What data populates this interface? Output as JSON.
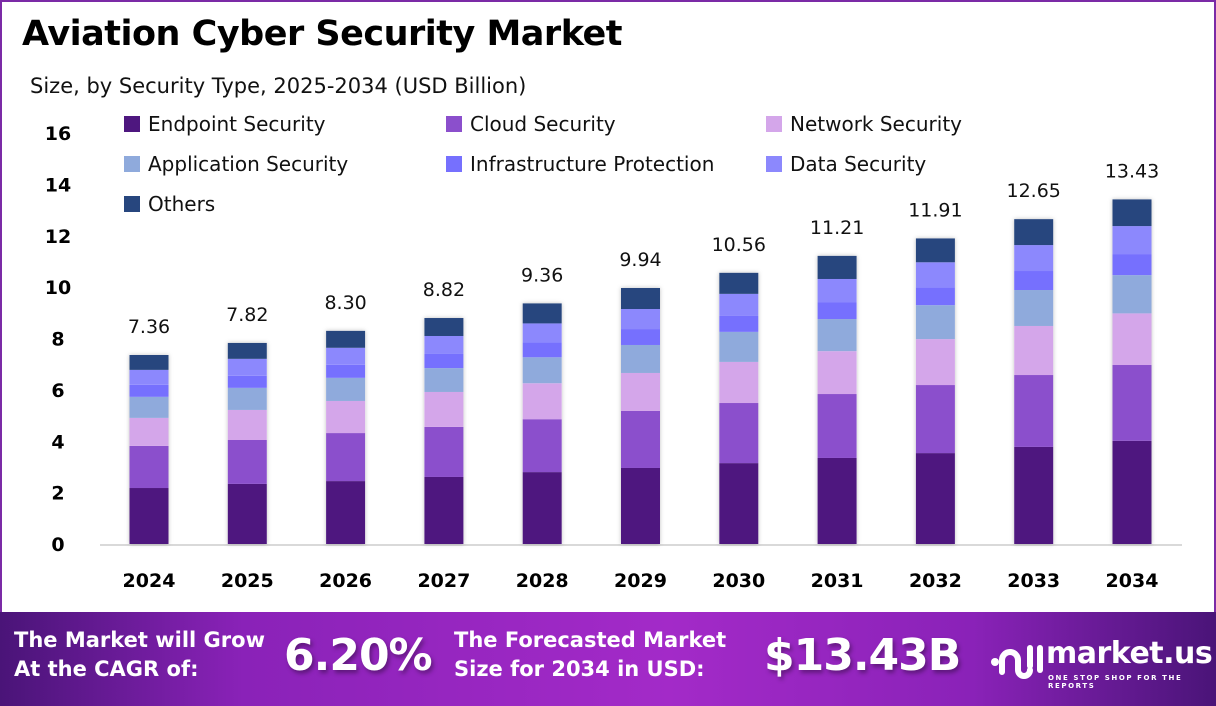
{
  "header": {
    "title": "Aviation Cyber Security Market",
    "subtitle": "Size, by Security Type, 2025-2034 (USD Billion)"
  },
  "chart_data": {
    "type": "bar",
    "stacked": true,
    "title": "Aviation Cyber Security Market",
    "subtitle": "Size, by Security Type, 2025-2034 (USD Billion)",
    "xlabel": "",
    "ylabel": "",
    "ylim": [
      0,
      16
    ],
    "yticks": [
      0,
      2,
      4,
      6,
      8,
      10,
      12,
      14,
      16
    ],
    "grid": false,
    "legend_position": "top-left",
    "categories": [
      "2024",
      "2025",
      "2026",
      "2027",
      "2028",
      "2029",
      "2030",
      "2031",
      "2032",
      "2033",
      "2034"
    ],
    "totals": [
      "7.36",
      "7.82",
      "8.30",
      "8.82",
      "9.36",
      "9.94",
      "10.56",
      "11.21",
      "11.91",
      "12.65",
      "13.43"
    ],
    "series": [
      {
        "name": "Endpoint Security",
        "color": "#4e177f",
        "values": [
          2.18,
          2.34,
          2.45,
          2.61,
          2.8,
          2.96,
          3.15,
          3.35,
          3.54,
          3.78,
          4.02
        ]
      },
      {
        "name": "Cloud Security",
        "color": "#8b4fcc",
        "values": [
          1.64,
          1.71,
          1.87,
          1.95,
          2.06,
          2.22,
          2.34,
          2.49,
          2.65,
          2.8,
          2.95
        ]
      },
      {
        "name": "Network Security",
        "color": "#d4a6ea",
        "values": [
          1.09,
          1.17,
          1.25,
          1.36,
          1.4,
          1.48,
          1.6,
          1.67,
          1.79,
          1.91,
          2.01
        ]
      },
      {
        "name": "Application Security",
        "color": "#8faadc",
        "values": [
          0.82,
          0.86,
          0.9,
          0.93,
          1.01,
          1.09,
          1.17,
          1.25,
          1.32,
          1.4,
          1.49
        ]
      },
      {
        "name": "Infrastructure Protection",
        "color": "#7670fe",
        "values": [
          0.47,
          0.47,
          0.51,
          0.55,
          0.58,
          0.62,
          0.62,
          0.66,
          0.7,
          0.74,
          0.82
        ]
      },
      {
        "name": "Data Security",
        "color": "#8c88fd",
        "values": [
          0.58,
          0.66,
          0.66,
          0.7,
          0.74,
          0.78,
          0.86,
          0.9,
          0.97,
          1.01,
          1.09
        ]
      },
      {
        "name": "Others",
        "color": "#27467e",
        "values": [
          0.58,
          0.62,
          0.66,
          0.7,
          0.78,
          0.82,
          0.82,
          0.9,
          0.93,
          1.01,
          1.04
        ]
      }
    ]
  },
  "banner": {
    "cagr_label_line1": "The Market will Grow",
    "cagr_label_line2": "At the CAGR of:",
    "cagr_value": "6.20%",
    "forecast_label_line1": "The Forecasted Market",
    "forecast_label_line2": "Size for 2034 in USD:",
    "forecast_value": "$13.43B",
    "brand_name": "market.us",
    "brand_tagline": "ONE STOP SHOP FOR THE REPORTS"
  },
  "colors": {
    "frame": "#7b2aa6",
    "banner_dark": "#4a1478",
    "banner_light": "#a32ac8"
  }
}
